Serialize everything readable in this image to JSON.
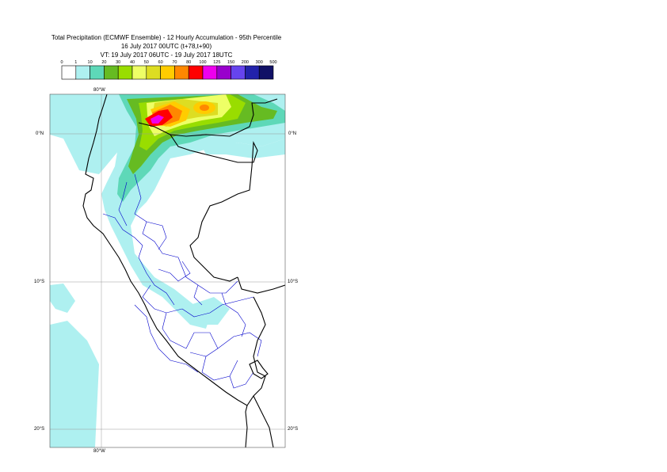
{
  "title": {
    "line1": "Total Precipitation (ECMWF Ensemble) - 12 Hourly Accumulation - 95th Percentile",
    "line2": "16 July 2017 00UTC (t+78,t+90)",
    "line3": "VT: 19 July 2017 06UTC - 19 July 2017 18UTC"
  },
  "legend": {
    "ticks": [
      "0",
      "1",
      "10",
      "20",
      "30",
      "40",
      "50",
      "60",
      "70",
      "80",
      "100",
      "125",
      "150",
      "200",
      "300",
      "500"
    ],
    "colors": [
      "#ffffff",
      "#aef0f0",
      "#5ed8b8",
      "#66bb22",
      "#99dd00",
      "#eeff66",
      "#dddd22",
      "#ffcc00",
      "#ff8800",
      "#ff0000",
      "#ee00ee",
      "#9900cc",
      "#6644ee",
      "#2222aa",
      "#111166"
    ]
  },
  "map": {
    "lon_labels": {
      "top": "80°W",
      "bottom": "80°W"
    },
    "lat_labels": [
      "0°N",
      "10°S",
      "20°S"
    ],
    "colors": {
      "light_cyan": "#aef0f0",
      "teal": "#5ed8b8",
      "green": "#66bb22",
      "lime": "#99dd00",
      "light_yellow": "#eeff66",
      "yellow": "#dddd22",
      "gold": "#ffcc00",
      "orange": "#ff8800",
      "red": "#ff0000",
      "magenta": "#ee00ee",
      "coastline": "#000000",
      "admin_borders": "#0000cc",
      "gridline": "#999999"
    }
  }
}
